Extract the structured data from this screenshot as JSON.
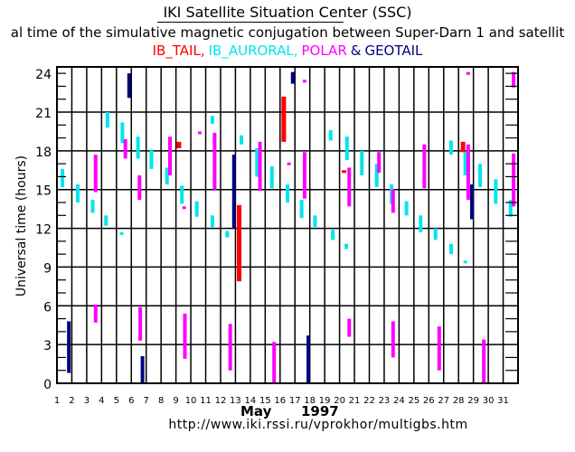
{
  "header": {
    "title": "IKI Satellite Situation Center (SSC)",
    "subtitle": "al time of the simulative magnetic conjugation between Super-Darn 1 and satellit",
    "legend": [
      {
        "label": "IB_TAIL,",
        "color": "#ff0000"
      },
      {
        "label": "IB_AURORAL,",
        "color": "#00e5ee"
      },
      {
        "label": "POLAR",
        "color": "#ff00ff"
      },
      {
        "label": "&",
        "color": "#000080"
      },
      {
        "label": "GEOTAIL",
        "color": "#000080"
      }
    ]
  },
  "footer": {
    "month": "May",
    "year": "1997",
    "url": "http://www.iki.rssi.ru/vprokhor/multigbs.htm"
  },
  "chart_data": {
    "type": "bar",
    "subtype": "floating-vertical-intervals",
    "title": "IKI Satellite Situation Center (SSC)",
    "xlabel": "May 1997",
    "ylabel": "Universal time (hours)",
    "xlim": [
      1,
      32
    ],
    "ylim": [
      0,
      24.5
    ],
    "x_ticks": [
      "1",
      "2",
      "3",
      "4",
      "5",
      "6",
      "7",
      "8",
      "9",
      "10",
      "11",
      "12",
      "13",
      "14",
      "15",
      "16",
      "17",
      "18",
      "19",
      "20",
      "21",
      "22",
      "23",
      "24",
      "25",
      "26",
      "27",
      "28",
      "29",
      "30",
      "31"
    ],
    "y_ticks": [
      0,
      3,
      6,
      9,
      12,
      15,
      18,
      21,
      24
    ],
    "grid": true,
    "series_colors": {
      "IB_TAIL": "#ff0000",
      "IB_AURORAL": "#00e5ee",
      "POLAR": "#ff00ff",
      "GEOTAIL": "#000080"
    },
    "intervals": [
      {
        "s": "IB_AURORAL",
        "day": 1.37,
        "from": 15.2,
        "to": 16.6
      },
      {
        "s": "GEOTAIL",
        "day": 1.8,
        "from": 0.8,
        "to": 4.8
      },
      {
        "s": "IB_AURORAL",
        "day": 2.4,
        "from": 14.0,
        "to": 15.4
      },
      {
        "s": "POLAR",
        "day": 3.6,
        "from": 14.8,
        "to": 17.7
      },
      {
        "s": "IB_AURORAL",
        "day": 3.4,
        "from": 13.2,
        "to": 14.2
      },
      {
        "s": "POLAR",
        "day": 3.6,
        "from": 4.7,
        "to": 6.1
      },
      {
        "s": "IB_AURORAL",
        "day": 4.4,
        "from": 19.8,
        "to": 21.0
      },
      {
        "s": "IB_AURORAL",
        "day": 4.3,
        "from": 12.2,
        "to": 13.0
      },
      {
        "s": "IB_AURORAL",
        "day": 5.4,
        "from": 18.6,
        "to": 20.2
      },
      {
        "s": "IB_AURORAL",
        "day": 5.35,
        "from": 11.5,
        "to": 11.7
      },
      {
        "s": "GEOTAIL",
        "day": 5.85,
        "from": 22.1,
        "to": 24.0
      },
      {
        "s": "POLAR",
        "day": 5.6,
        "from": 17.4,
        "to": 18.9
      },
      {
        "s": "IB_AURORAL",
        "day": 6.45,
        "from": 17.4,
        "to": 19.1
      },
      {
        "s": "POLAR",
        "day": 6.55,
        "from": 14.2,
        "to": 16.1
      },
      {
        "s": "POLAR",
        "day": 6.6,
        "from": 3.3,
        "to": 5.9
      },
      {
        "s": "GEOTAIL",
        "day": 6.75,
        "from": 0.0,
        "to": 2.1
      },
      {
        "s": "IB_AURORAL",
        "day": 7.35,
        "from": 16.6,
        "to": 18.1
      },
      {
        "s": "IB_AURORAL",
        "day": 8.4,
        "from": 15.4,
        "to": 16.7
      },
      {
        "s": "POLAR",
        "day": 8.6,
        "from": 16.1,
        "to": 19.1
      },
      {
        "s": "IB_TAIL",
        "day": 9.2,
        "from": 18.2,
        "to": 18.7
      },
      {
        "s": "POLAR",
        "day": 9.6,
        "from": 1.9,
        "to": 5.4
      },
      {
        "s": "IB_AURORAL",
        "day": 9.4,
        "from": 13.9,
        "to": 15.3
      },
      {
        "s": "POLAR",
        "day": 9.55,
        "from": 13.5,
        "to": 13.7
      },
      {
        "s": "POLAR",
        "day": 10.6,
        "from": 19.3,
        "to": 19.5
      },
      {
        "s": "IB_AURORAL",
        "day": 10.4,
        "from": 12.9,
        "to": 14.1
      },
      {
        "s": "IB_AURORAL",
        "day": 11.45,
        "from": 20.1,
        "to": 20.7
      },
      {
        "s": "POLAR",
        "day": 11.6,
        "from": 15.0,
        "to": 19.4
      },
      {
        "s": "IB_AURORAL",
        "day": 11.45,
        "from": 12.1,
        "to": 13.0
      },
      {
        "s": "IB_AURORAL",
        "day": 12.45,
        "from": 11.3,
        "to": 11.8
      },
      {
        "s": "POLAR",
        "day": 12.65,
        "from": 1.0,
        "to": 4.6
      },
      {
        "s": "GEOTAIL",
        "day": 12.9,
        "from": 12.0,
        "to": 17.7
      },
      {
        "s": "IB_AURORAL",
        "day": 13.4,
        "from": 18.5,
        "to": 19.2
      },
      {
        "s": "IB_TAIL",
        "day": 13.25,
        "from": 7.9,
        "to": 13.8
      },
      {
        "s": "IB_AURORAL",
        "day": 14.45,
        "from": 16.0,
        "to": 18.2
      },
      {
        "s": "POLAR",
        "day": 14.65,
        "from": 14.9,
        "to": 18.7
      },
      {
        "s": "POLAR",
        "day": 15.6,
        "from": 0.0,
        "to": 3.2
      },
      {
        "s": "IB_AURORAL",
        "day": 15.45,
        "from": 15.1,
        "to": 16.8
      },
      {
        "s": "IB_AURORAL",
        "day": 16.5,
        "from": 14.0,
        "to": 15.4
      },
      {
        "s": "IB_TAIL",
        "day": 16.25,
        "from": 18.7,
        "to": 22.2
      },
      {
        "s": "POLAR",
        "day": 16.6,
        "from": 16.9,
        "to": 17.1
      },
      {
        "s": "GEOTAIL",
        "day": 16.85,
        "from": 23.2,
        "to": 24.1
      },
      {
        "s": "POLAR",
        "day": 17.65,
        "from": 23.3,
        "to": 23.5
      },
      {
        "s": "IB_AURORAL",
        "day": 17.45,
        "from": 12.8,
        "to": 14.2
      },
      {
        "s": "POLAR",
        "day": 17.65,
        "from": 14.3,
        "to": 17.9
      },
      {
        "s": "GEOTAIL",
        "day": 17.9,
        "from": 0.0,
        "to": 3.7
      },
      {
        "s": "IB_AURORAL",
        "day": 18.35,
        "from": 12.1,
        "to": 13.0
      },
      {
        "s": "IB_AURORAL",
        "day": 19.4,
        "from": 18.8,
        "to": 19.6
      },
      {
        "s": "IB_AURORAL",
        "day": 19.55,
        "from": 11.1,
        "to": 11.9
      },
      {
        "s": "IB_AURORAL",
        "day": 20.5,
        "from": 17.3,
        "to": 19.1
      },
      {
        "s": "IB_TAIL",
        "day": 20.3,
        "from": 16.3,
        "to": 16.5
      },
      {
        "s": "POLAR",
        "day": 20.65,
        "from": 13.7,
        "to": 16.7
      },
      {
        "s": "IB_AURORAL",
        "day": 20.45,
        "from": 10.4,
        "to": 10.8
      },
      {
        "s": "POLAR",
        "day": 20.65,
        "from": 3.6,
        "to": 5.0
      },
      {
        "s": "IB_AURORAL",
        "day": 21.5,
        "from": 16.1,
        "to": 18.0
      },
      {
        "s": "IB_AURORAL",
        "day": 22.5,
        "from": 15.2,
        "to": 17.0
      },
      {
        "s": "POLAR",
        "day": 22.65,
        "from": 16.3,
        "to": 17.9
      },
      {
        "s": "IB_AURORAL",
        "day": 23.5,
        "from": 13.9,
        "to": 15.4
      },
      {
        "s": "POLAR",
        "day": 23.6,
        "from": 13.2,
        "to": 15.0
      },
      {
        "s": "POLAR",
        "day": 23.6,
        "from": 2.0,
        "to": 4.8
      },
      {
        "s": "IB_AURORAL",
        "day": 24.5,
        "from": 13.0,
        "to": 14.1
      },
      {
        "s": "IB_AURORAL",
        "day": 25.45,
        "from": 11.7,
        "to": 13.0
      },
      {
        "s": "POLAR",
        "day": 25.7,
        "from": 15.1,
        "to": 18.5
      },
      {
        "s": "IB_AURORAL",
        "day": 26.45,
        "from": 11.1,
        "to": 12.0
      },
      {
        "s": "POLAR",
        "day": 26.7,
        "from": 1.0,
        "to": 4.4
      },
      {
        "s": "IB_AURORAL",
        "day": 27.5,
        "from": 10.0,
        "to": 10.8
      },
      {
        "s": "IB_AURORAL",
        "day": 27.5,
        "from": 17.7,
        "to": 18.8
      },
      {
        "s": "IB_TAIL",
        "day": 28.3,
        "from": 17.9,
        "to": 18.7
      },
      {
        "s": "IB_AURORAL",
        "day": 28.45,
        "from": 16.1,
        "to": 17.9
      },
      {
        "s": "POLAR",
        "day": 28.65,
        "from": 14.2,
        "to": 18.5
      },
      {
        "s": "IB_AURORAL",
        "day": 28.45,
        "from": 9.3,
        "to": 9.5
      },
      {
        "s": "GEOTAIL",
        "day": 28.9,
        "from": 12.7,
        "to": 15.4
      },
      {
        "s": "POLAR",
        "day": 28.65,
        "from": 23.9,
        "to": 24.1
      },
      {
        "s": "POLAR",
        "day": 29.7,
        "from": 0.0,
        "to": 3.4
      },
      {
        "s": "IB_AURORAL",
        "day": 29.45,
        "from": 15.2,
        "to": 17.0
      },
      {
        "s": "IB_AURORAL",
        "day": 30.5,
        "from": 13.9,
        "to": 15.8
      },
      {
        "s": "IB_AURORAL",
        "day": 31.5,
        "from": 12.9,
        "to": 14.2
      },
      {
        "s": "POLAR",
        "day": 31.7,
        "from": 13.7,
        "to": 17.8
      },
      {
        "s": "POLAR",
        "day": 31.7,
        "from": 22.9,
        "to": 24.1
      }
    ]
  }
}
